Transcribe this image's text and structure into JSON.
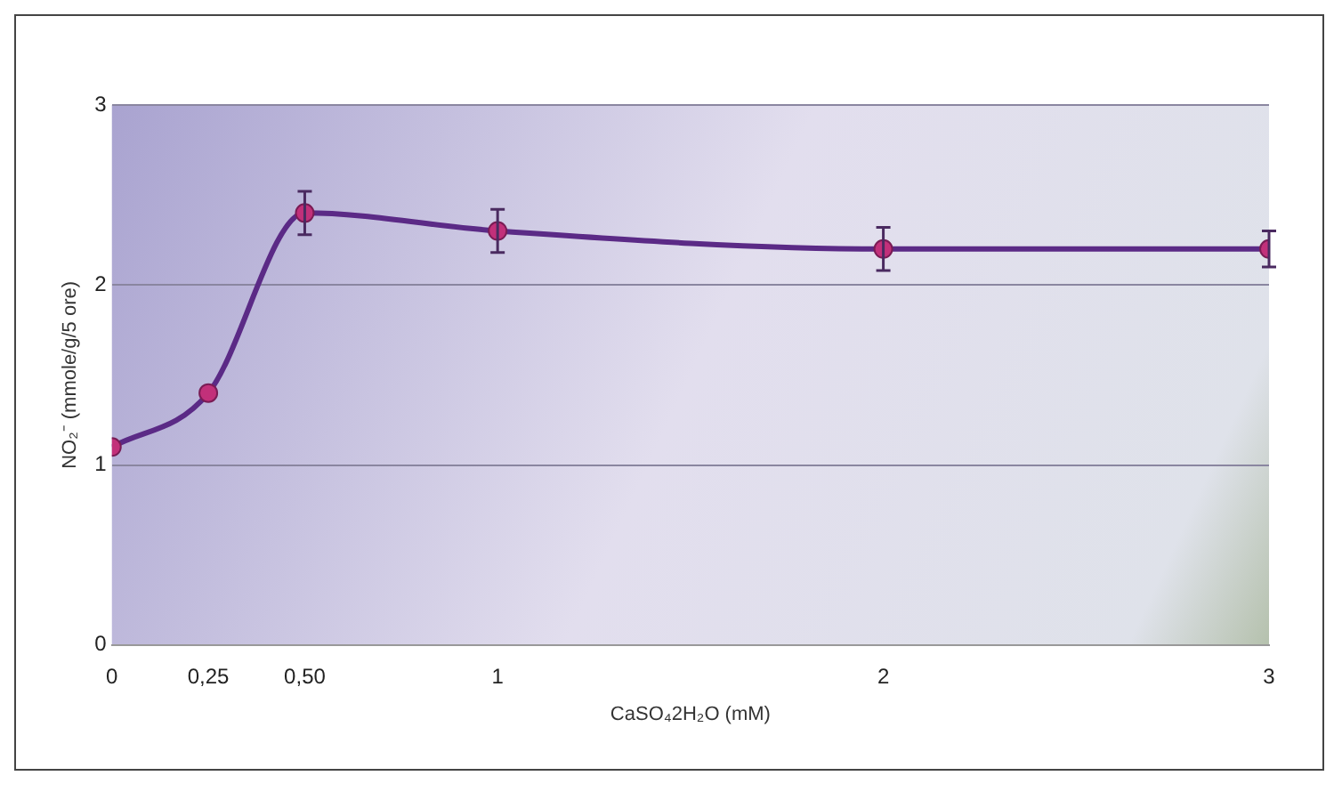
{
  "chart_data": {
    "type": "line",
    "xlabel": "CaSO₄2H₂O (mM)",
    "ylabel": "NO₂⁻ (mmole/g/5 ore)",
    "x": [
      0,
      0.25,
      0.5,
      1,
      2,
      3
    ],
    "series": [
      {
        "color": "#5b2a86",
        "values": [
          1.1,
          1.4,
          2.4,
          2.3,
          2.2,
          2.2
        ],
        "errors": [
          null,
          null,
          0.12,
          0.12,
          0.12,
          0.1
        ]
      }
    ],
    "xlim": [
      0,
      3
    ],
    "xticks": [
      0,
      {
        "value": 0.25,
        "label": "0,25"
      },
      {
        "value": 0.5,
        "label": "0,50"
      },
      1,
      2,
      3
    ],
    "ylim": [
      0,
      3
    ],
    "yticks": [
      0,
      1,
      2,
      3
    ],
    "grid": "y",
    "marker": "circle",
    "line_style": "solid",
    "legend": false
  }
}
